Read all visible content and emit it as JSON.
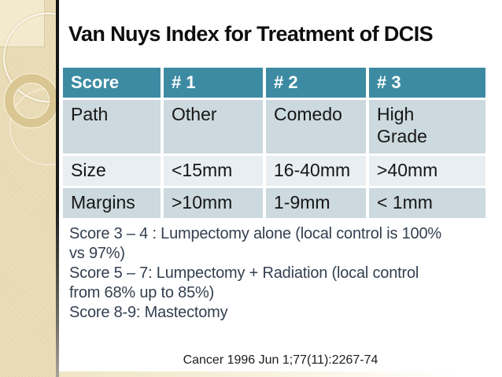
{
  "slide": {
    "title": "Van Nuys Index for Treatment of DCIS",
    "table": {
      "headers": [
        "Score",
        "# 1",
        "# 2",
        "# 3"
      ],
      "rows": [
        {
          "label": "Path",
          "cells": [
            "Path",
            "Other",
            "Comedo",
            "High Grade"
          ]
        },
        {
          "label": "Size",
          "cells": [
            "Size",
            "<15mm",
            "16-40mm",
            ">40mm"
          ]
        },
        {
          "label": "Margins",
          "cells": [
            "Margins",
            ">10mm",
            "1-9mm",
            "< 1mm"
          ]
        }
      ]
    },
    "notes_lines": [
      "Score 3 – 4 : Lumpectomy alone (local control is 100%",
      "vs 97%)",
      "Score 5 – 7: Lumpectomy + Radiation (local control",
      "from 68% up to 85%)",
      "Score 8-9: Mastectomy"
    ],
    "citation": "Cancer 1996 Jun 1;77(11):2267-74",
    "colors": {
      "header_teal": "#3d8ba3",
      "row_dark": "#ccd9de",
      "row_light": "#e8eef1",
      "notes_text": "#333f50",
      "sidebar_beige": "#eadcb4",
      "ring_tan": "#d9c48f"
    }
  }
}
